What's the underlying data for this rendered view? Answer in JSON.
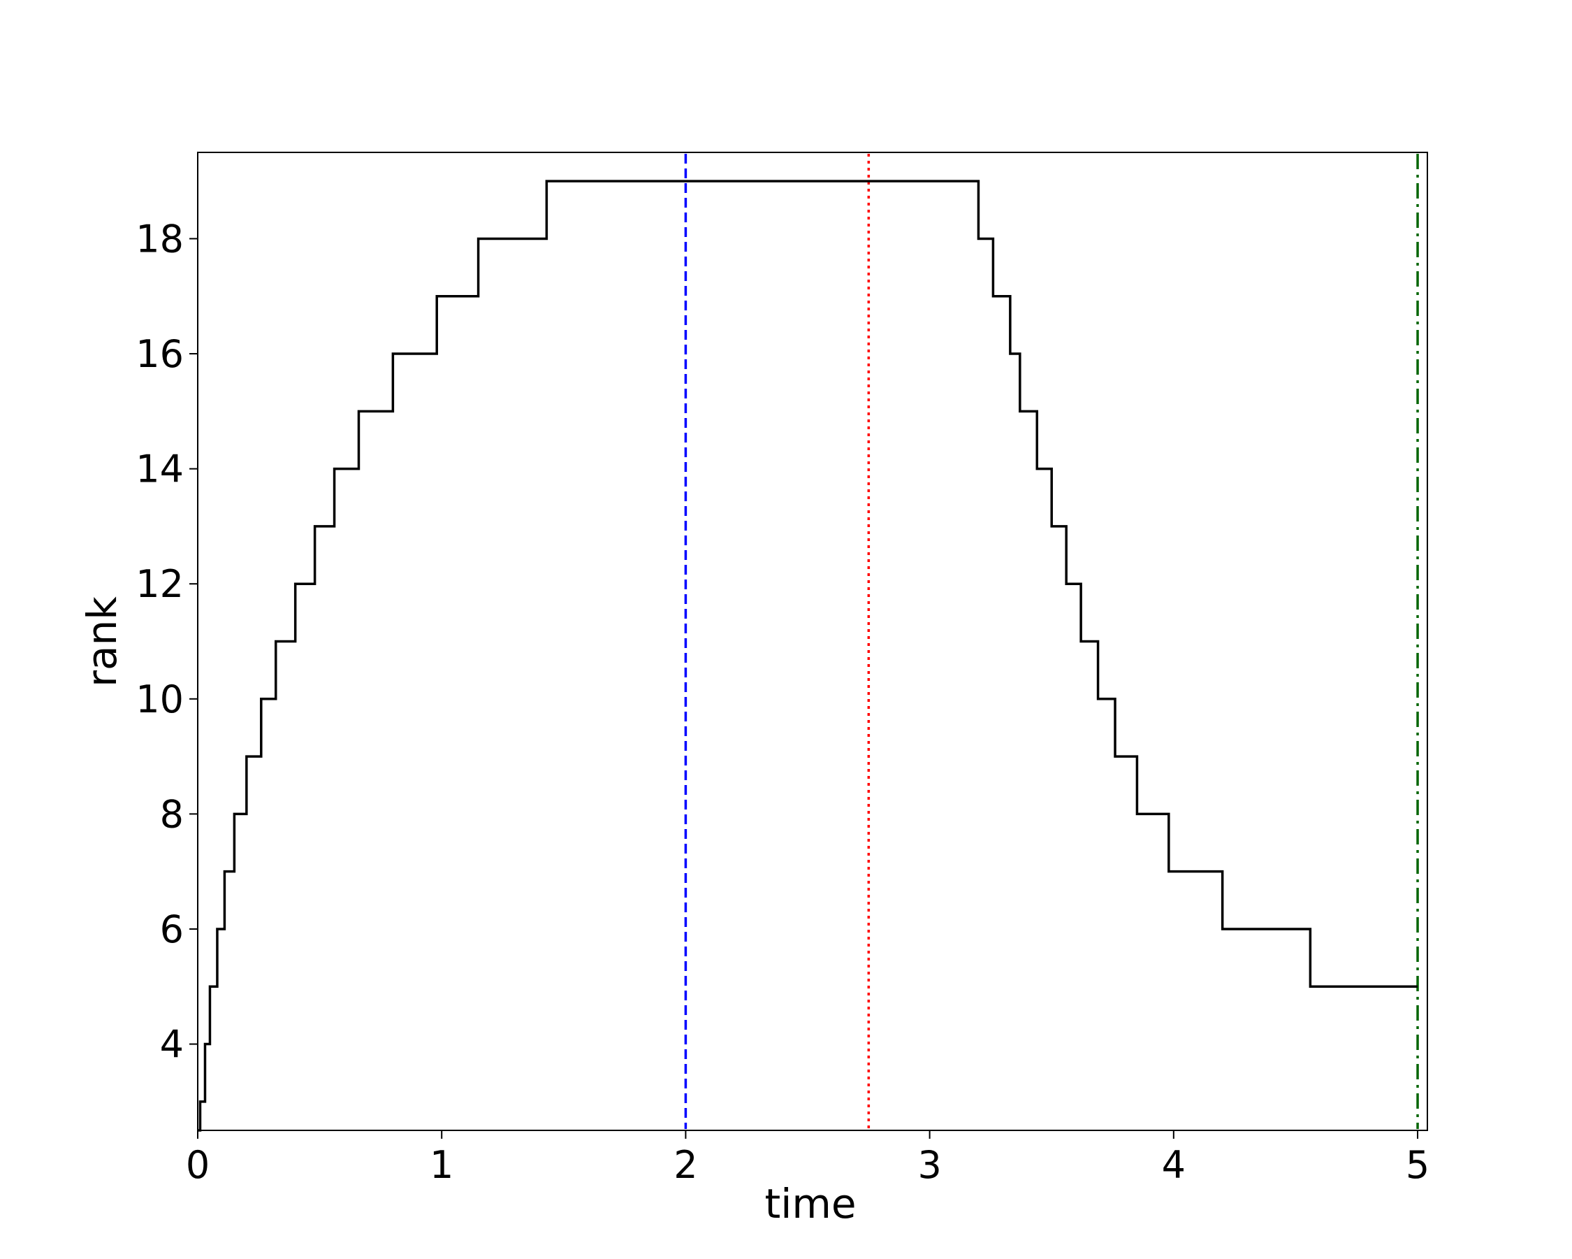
{
  "chart_data": {
    "type": "line",
    "title": "",
    "xlabel": "time",
    "ylabel": "rank",
    "xlim": [
      0,
      5.04
    ],
    "ylim": [
      2.5,
      19.5
    ],
    "xticks": [
      0,
      1,
      2,
      3,
      4,
      5
    ],
    "yticks": [
      4,
      6,
      8,
      10,
      12,
      14,
      16,
      18
    ],
    "grid": false,
    "legend": "none",
    "series": [
      {
        "step": "post",
        "color": "#000000",
        "x": [
          0,
          0.01,
          0.03,
          0.05,
          0.08,
          0.11,
          0.15,
          0.2,
          0.26,
          0.32,
          0.4,
          0.48,
          0.56,
          0.66,
          0.8,
          0.98,
          1.15,
          1.43,
          3.2,
          3.26,
          3.33,
          3.37,
          3.44,
          3.5,
          3.56,
          3.62,
          3.69,
          3.76,
          3.85,
          3.98,
          4.2,
          4.56,
          5.0
        ],
        "y": [
          2.5,
          3,
          4,
          5,
          6,
          7,
          8,
          9,
          10,
          11,
          12,
          13,
          14,
          15,
          16,
          17,
          18,
          19,
          18,
          17,
          16,
          15,
          14,
          13,
          12,
          11,
          10,
          9,
          8,
          7,
          6,
          5,
          5
        ]
      }
    ],
    "vlines": [
      {
        "x": 2.0,
        "color": "#0000ff",
        "style": "dashed"
      },
      {
        "x": 2.75,
        "color": "#ff0000",
        "style": "dotted"
      },
      {
        "x": 5.0,
        "color": "#006400",
        "style": "dashdot"
      }
    ]
  }
}
